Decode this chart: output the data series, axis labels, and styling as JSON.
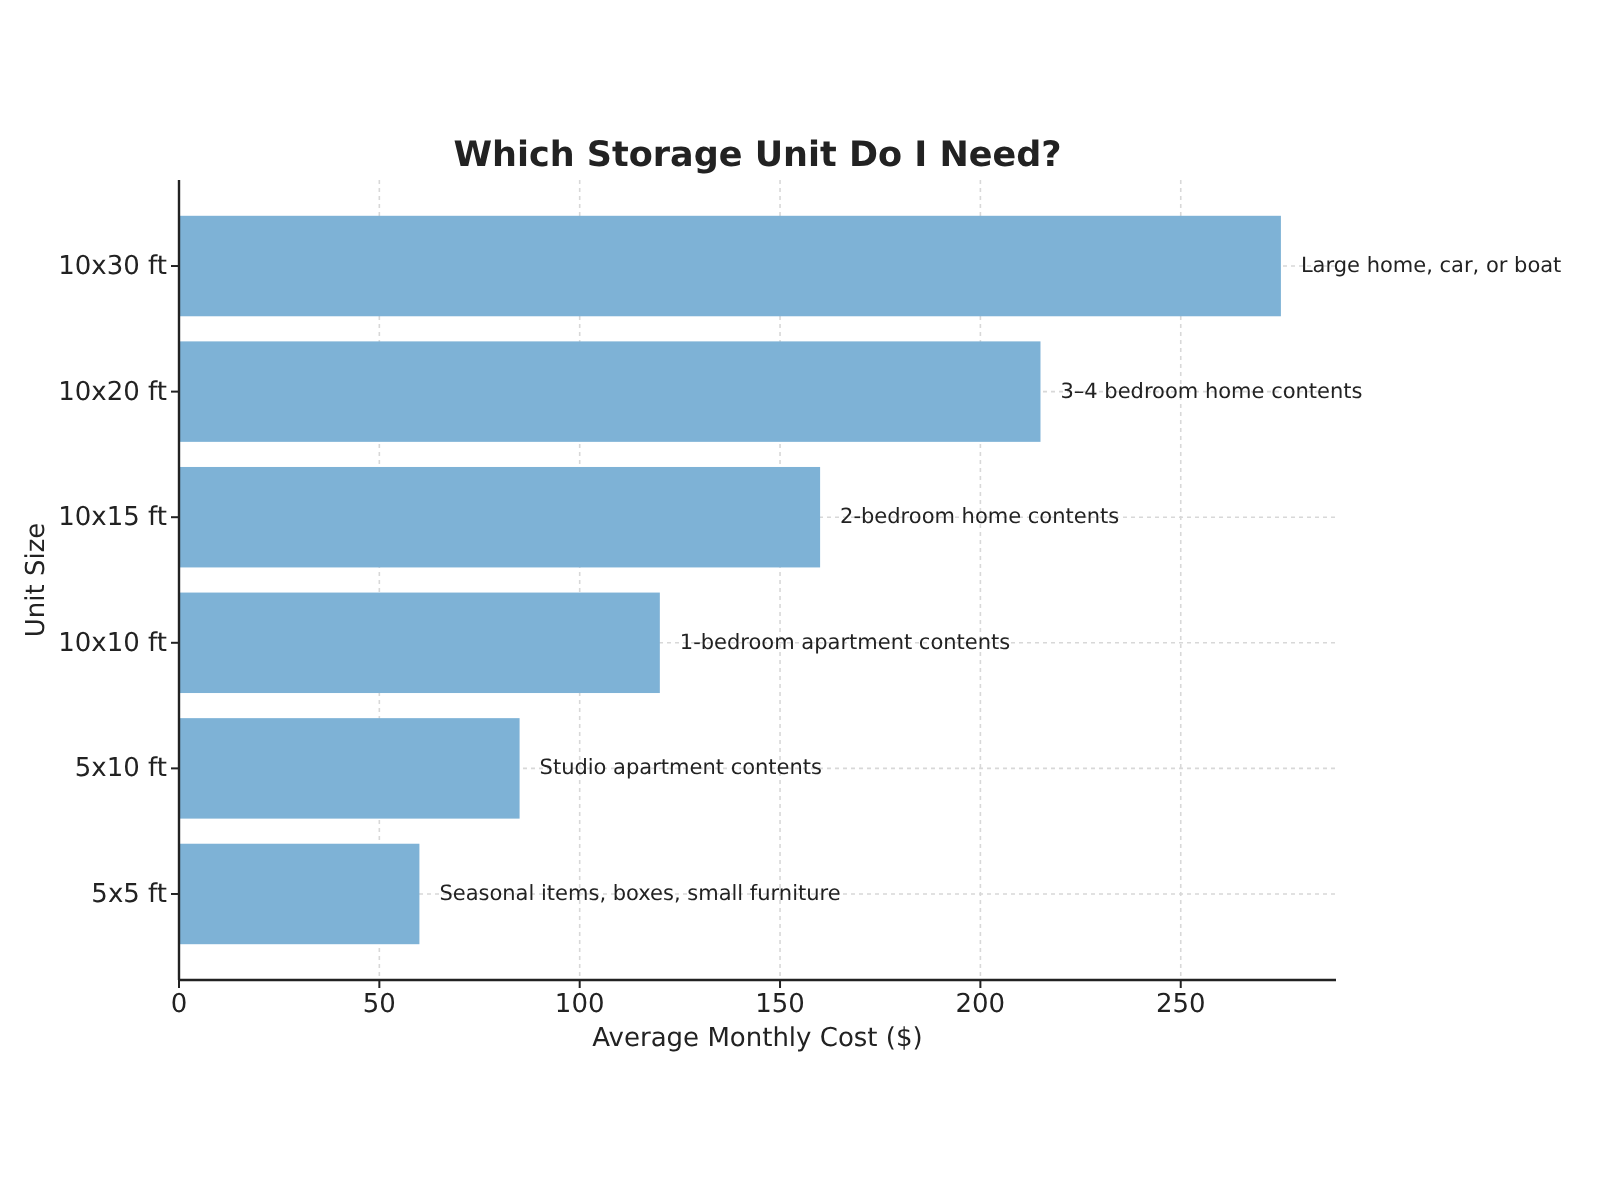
{
  "chart_data": {
    "type": "bar",
    "orientation": "horizontal",
    "title": "Which Storage Unit Do I Need?",
    "xlabel": "Average Monthly Cost ($)",
    "ylabel": "Unit Size",
    "categories": [
      "10x30 ft",
      "10x20 ft",
      "10x15 ft",
      "10x10 ft",
      "5x10 ft",
      "5x5 ft"
    ],
    "values": [
      275,
      215,
      160,
      120,
      85,
      60
    ],
    "color": "#7eb2d6",
    "xlim": [
      0,
      288.75
    ],
    "xticks": [
      0,
      50,
      100,
      150,
      200,
      250
    ],
    "grid": true,
    "annotations": [
      {
        "text": "Large home, car, or boat",
        "x": 275,
        "y": "10x30 ft"
      },
      {
        "text": "3–4 bedroom home contents",
        "x": 215,
        "y": "10x20 ft"
      },
      {
        "text": "2-bedroom home contents",
        "x": 160,
        "y": "10x15 ft"
      },
      {
        "text": "1-bedroom apartment contents",
        "x": 120,
        "y": "10x10 ft"
      },
      {
        "text": "Studio apartment contents",
        "x": 85,
        "y": "5x10 ft"
      },
      {
        "text": "Seasonal items, boxes, small furniture",
        "x": 60,
        "y": "5x5 ft"
      }
    ]
  }
}
